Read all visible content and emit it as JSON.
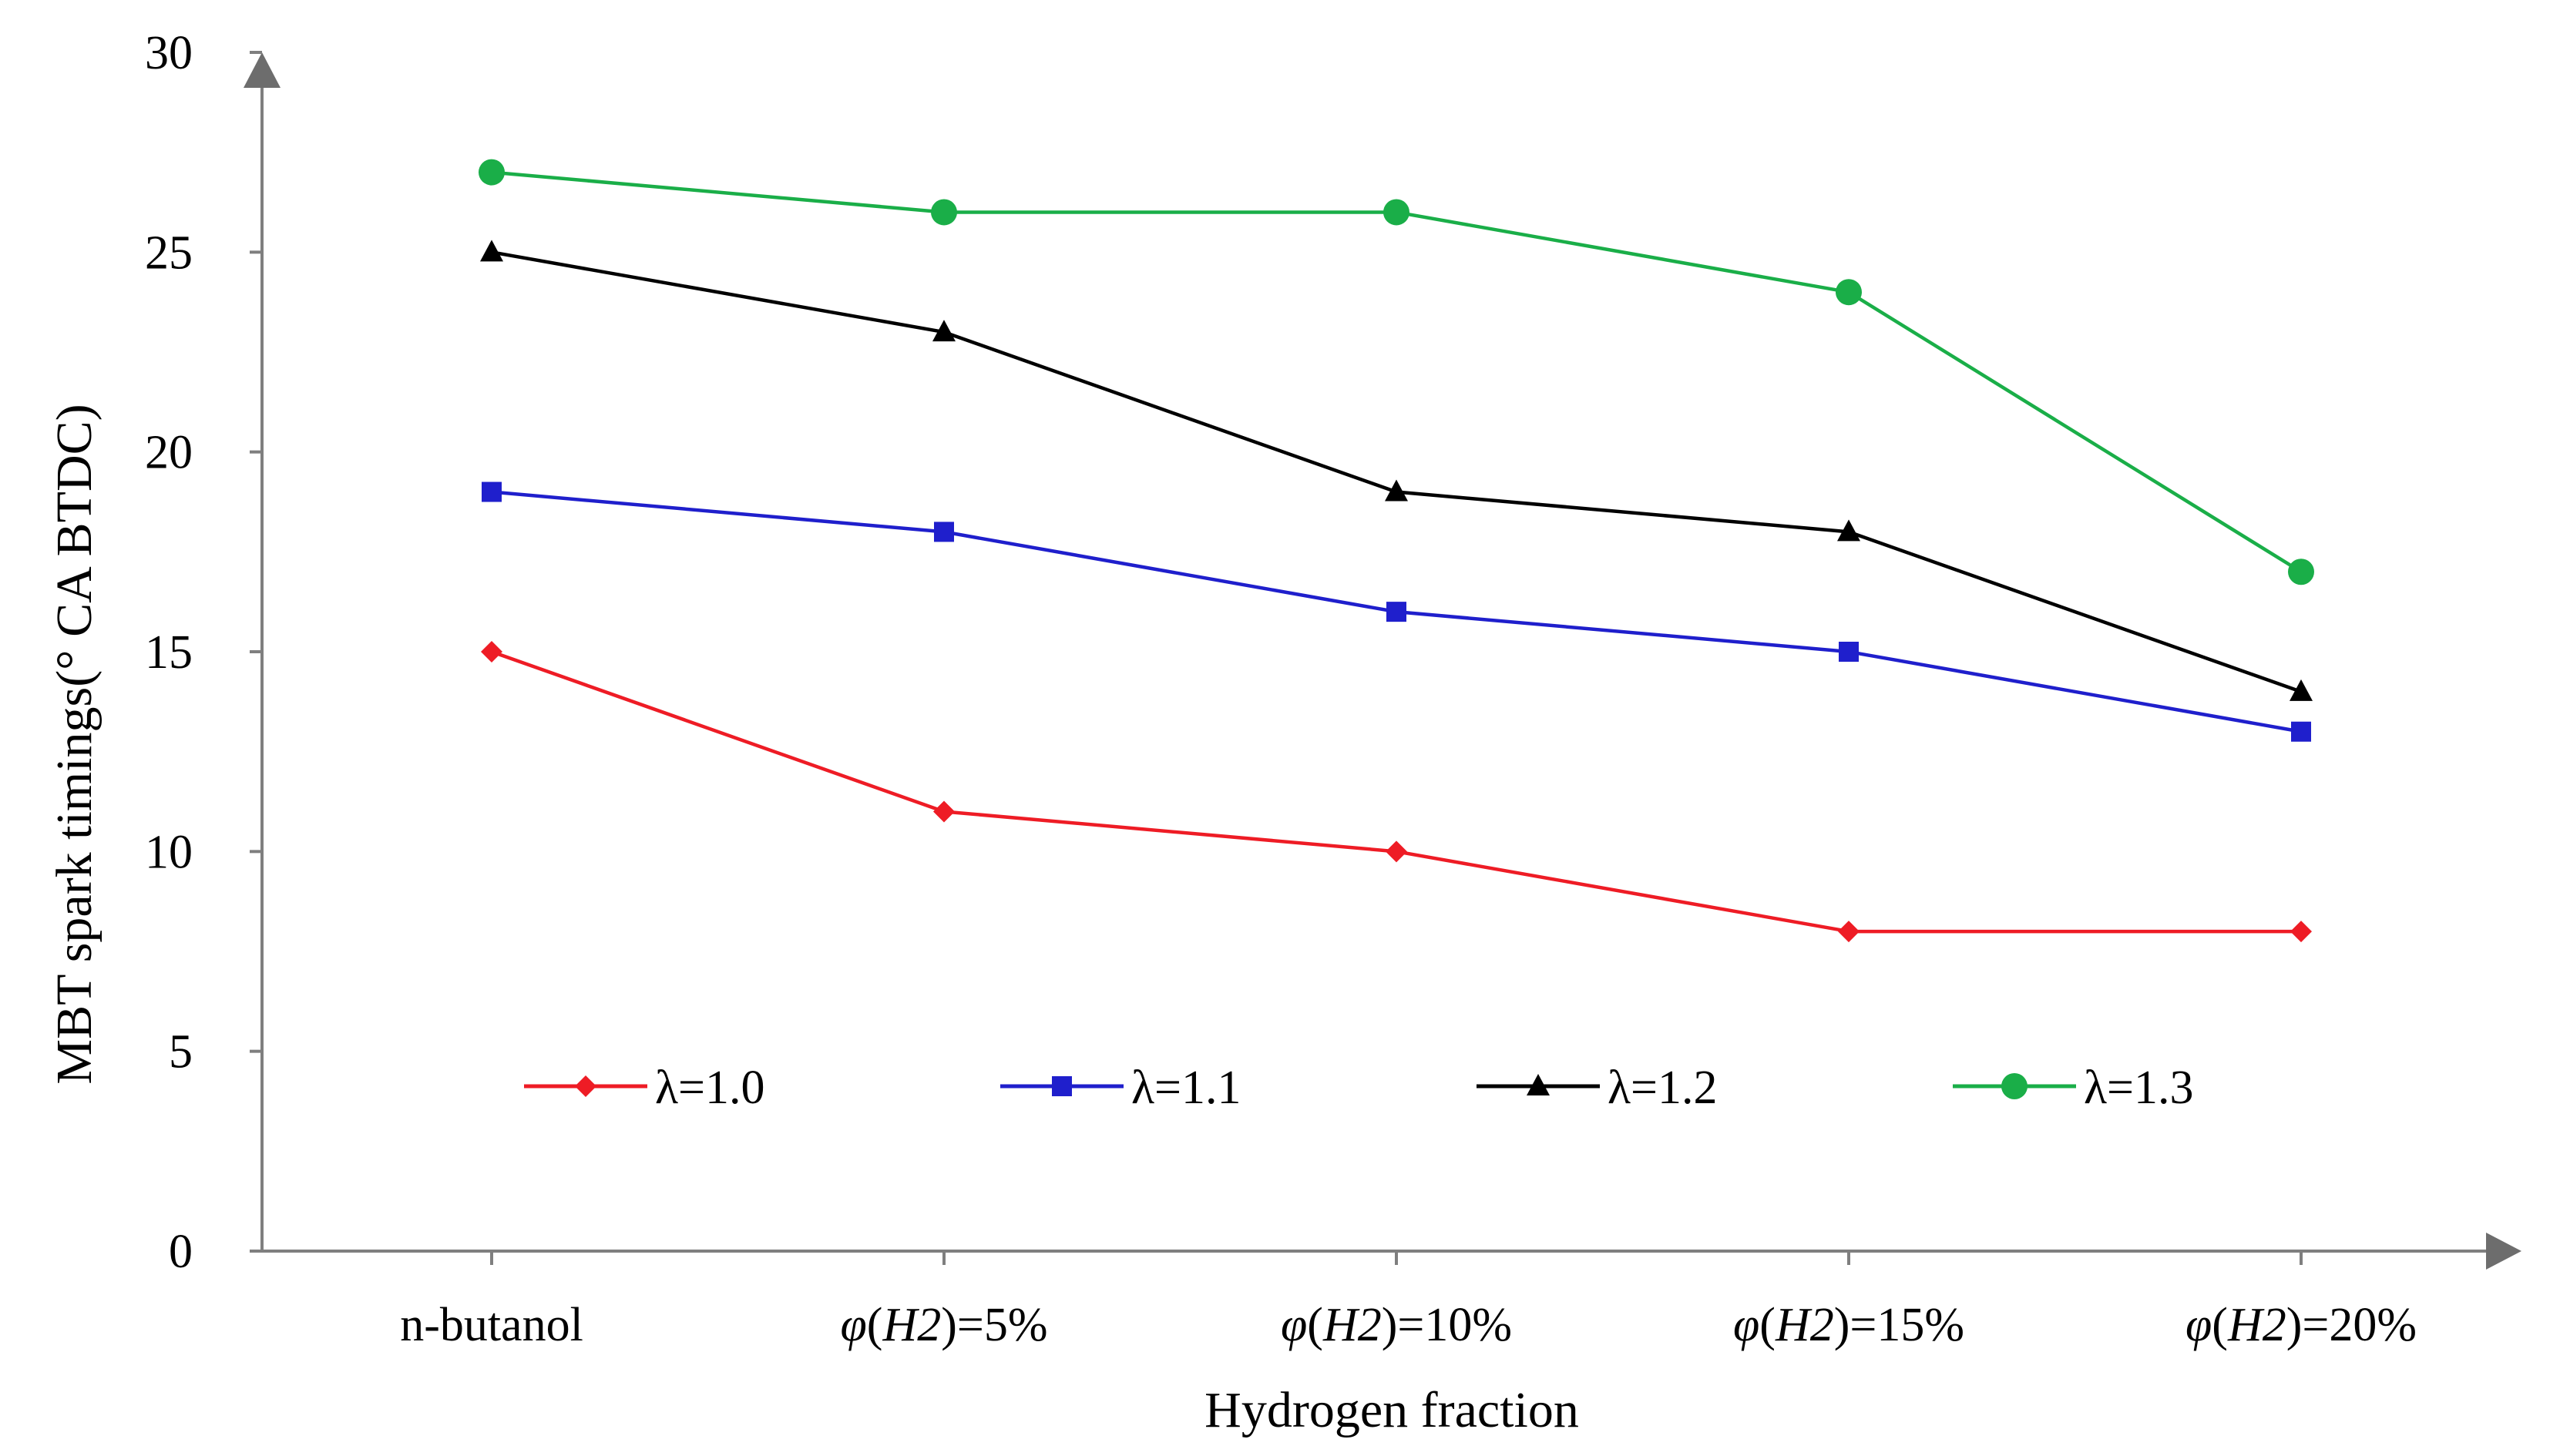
{
  "chart_data": {
    "type": "line",
    "title": "",
    "xlabel": "Hydrogen fraction",
    "ylabel": "MBT spark timings(° CA BTDC)",
    "ylim": [
      0,
      30
    ],
    "yticks": [
      0,
      5,
      10,
      15,
      20,
      25,
      30
    ],
    "grid": false,
    "legend_position": "inside-bottom",
    "categories": [
      {
        "label": "n-butanol",
        "var": "",
        "sub": "",
        "value": ""
      },
      {
        "label": "φ(H2)=5%",
        "var": "φ",
        "sub": "H2",
        "value": "=5%"
      },
      {
        "label": "φ(H2)=10%",
        "var": "φ",
        "sub": "H2",
        "value": "=10%"
      },
      {
        "label": "φ(H2)=15%",
        "var": "φ",
        "sub": "H2",
        "value": "=15%"
      },
      {
        "label": "φ(H2)=20%",
        "var": "φ",
        "sub": "H2",
        "value": "=20%"
      }
    ],
    "series": [
      {
        "name": "λ=1.0",
        "color": "#ee1c25",
        "marker": "diamond",
        "values": [
          15,
          11,
          10,
          8,
          8
        ]
      },
      {
        "name": "λ=1.1",
        "color": "#1f1fcc",
        "marker": "square",
        "values": [
          19,
          18,
          16,
          15,
          13
        ]
      },
      {
        "name": "λ=1.2",
        "color": "#000000",
        "marker": "triangle",
        "values": [
          25,
          23,
          19,
          18,
          14
        ]
      },
      {
        "name": "λ=1.3",
        "color": "#1aae48",
        "marker": "circle",
        "values": [
          27,
          26,
          26,
          24,
          17
        ]
      }
    ]
  }
}
